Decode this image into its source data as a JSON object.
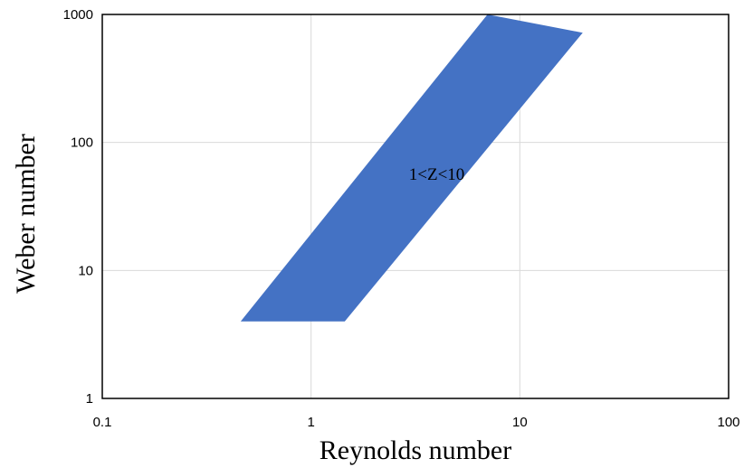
{
  "chart_data": {
    "type": "area",
    "title": "",
    "xlabel": "Reynolds number",
    "ylabel": "Weber number",
    "x_scale": "log",
    "y_scale": "log",
    "xlim": [
      0.1,
      100
    ],
    "ylim": [
      1,
      1000
    ],
    "x_ticks": [
      0.1,
      1,
      10,
      100
    ],
    "y_ticks": [
      1,
      10,
      100,
      1000
    ],
    "x_tick_labels": [
      "0.1",
      "1",
      "10",
      "100"
    ],
    "y_tick_labels": [
      "1",
      "10",
      "100",
      "1000"
    ],
    "grid": true,
    "legend": "none",
    "fill_color": "#4472c4",
    "grid_color": "#d9d9d9",
    "regions": [
      {
        "label": "1<Z<10",
        "polygon": [
          {
            "x": 7,
            "y": 1200
          },
          {
            "x": 20,
            "y": 720
          },
          {
            "x": 1.45,
            "y": 4
          },
          {
            "x": 0.46,
            "y": 4
          }
        ],
        "label_position": {
          "x": 4,
          "y": 55
        }
      }
    ]
  }
}
